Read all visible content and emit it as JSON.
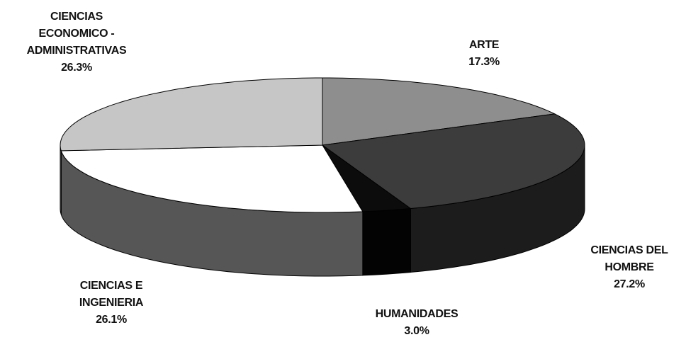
{
  "chart_data": {
    "type": "pie3d",
    "categories": [
      "ARTE",
      "CIENCIAS DEL HOMBRE",
      "HUMANIDADES",
      "CIENCIAS E INGENIERIA",
      "CIENCIAS ECONOMICO - ADMINISTRATIVAS"
    ],
    "values": [
      17.3,
      27.2,
      3.0,
      26.1,
      26.3
    ],
    "value_labels": [
      "17.3%",
      "27.2%",
      "3.0%",
      "26.1%",
      "26.3%"
    ],
    "colors": [
      "#8e8e8e",
      "#3c3c3c",
      "#0c0c0c",
      "#ffffff",
      "#c6c6c6"
    ],
    "side_colors": [
      "#6a6a6a",
      "#1c1c1c",
      "#030303",
      "#565656",
      "#8a8a8a"
    ]
  }
}
